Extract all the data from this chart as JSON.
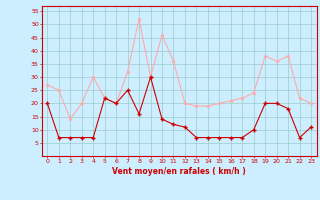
{
  "x": [
    0,
    1,
    2,
    3,
    4,
    5,
    6,
    7,
    8,
    9,
    10,
    11,
    12,
    13,
    14,
    15,
    16,
    17,
    18,
    19,
    20,
    21,
    22,
    23
  ],
  "wind_mean": [
    20,
    7,
    7,
    7,
    7,
    22,
    20,
    25,
    16,
    30,
    14,
    12,
    11,
    7,
    7,
    7,
    7,
    7,
    10,
    20,
    20,
    18,
    7,
    11
  ],
  "wind_gust": [
    27,
    25,
    14,
    20,
    30,
    22,
    20,
    32,
    52,
    30,
    46,
    36,
    20,
    19,
    19,
    20,
    21,
    22,
    24,
    38,
    36,
    38,
    22,
    20
  ],
  "mean_color": "#cc0000",
  "gust_color": "#ffaaaa",
  "bg_color": "#cceeff",
  "grid_color": "#99cccc",
  "xlabel": "Vent moyen/en rafales ( km/h )",
  "xlabel_color": "#cc0000",
  "ylim": [
    0,
    57
  ],
  "yticks": [
    5,
    10,
    15,
    20,
    25,
    30,
    35,
    40,
    45,
    50,
    55
  ],
  "xlim": [
    -0.5,
    23.5
  ],
  "xticks": [
    0,
    1,
    2,
    3,
    4,
    5,
    6,
    7,
    8,
    9,
    10,
    11,
    12,
    13,
    14,
    15,
    16,
    17,
    18,
    19,
    20,
    21,
    22,
    23
  ]
}
